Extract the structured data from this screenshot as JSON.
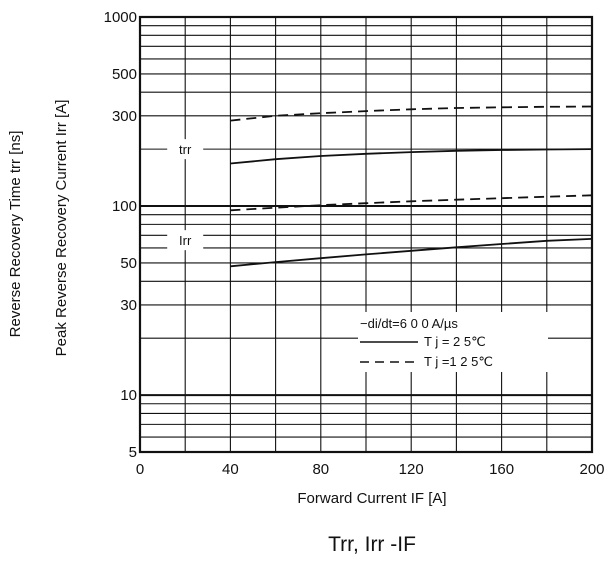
{
  "chart_data": {
    "type": "line",
    "title": "Trr, Irr -IF",
    "xlabel": "Forward Current IF [A]",
    "ylabel_outer": "Reverse Recovery Time trr [ns]",
    "ylabel_inner": "Peak Reverse Recovery Current Irr [A]",
    "x_scale": "linear",
    "y_scale": "log",
    "xlim": [
      0,
      200
    ],
    "ylim": [
      5,
      1000
    ],
    "x_ticks": [
      0,
      40,
      80,
      120,
      160,
      200
    ],
    "y_ticks": [
      5,
      10,
      30,
      50,
      100,
      300,
      500,
      1000
    ],
    "grid": true,
    "curve_labels": [
      {
        "text": "trr",
        "x": 20,
        "y": 200
      },
      {
        "text": "Irr",
        "x": 20,
        "y": 66
      }
    ],
    "legend": {
      "title": "−di/dt=6 0 0  A/µs",
      "placement": "bottom-right",
      "entries": [
        {
          "label": "T j  =    2 5℃",
          "style": "solid"
        },
        {
          "label": "T j  =1 2 5℃",
          "style": "dashed"
        }
      ]
    },
    "series": [
      {
        "curve": "trr",
        "condition": "Tj=25℃",
        "style": "solid",
        "x": [
          40,
          60,
          80,
          100,
          120,
          140,
          160,
          180,
          200
        ],
        "y": [
          168,
          177,
          184,
          189,
          193,
          196,
          198,
          199,
          200
        ]
      },
      {
        "curve": "trr",
        "condition": "Tj=125℃",
        "style": "dashed",
        "x": [
          40,
          60,
          80,
          100,
          120,
          140,
          160,
          180,
          200
        ],
        "y": [
          283,
          300,
          310,
          318,
          325,
          330,
          333,
          335,
          336
        ]
      },
      {
        "curve": "Irr",
        "condition": "Tj=25℃",
        "style": "solid",
        "x": [
          40,
          60,
          80,
          100,
          120,
          140,
          160,
          180,
          200
        ],
        "y": [
          48,
          50.5,
          53,
          55.5,
          58,
          60.5,
          63,
          65.5,
          67
        ]
      },
      {
        "curve": "Irr",
        "condition": "Tj=125℃",
        "style": "dashed",
        "x": [
          40,
          60,
          80,
          100,
          120,
          140,
          160,
          180,
          200
        ],
        "y": [
          95,
          98,
          101,
          103.5,
          106,
          108,
          110,
          112,
          114
        ]
      }
    ]
  }
}
